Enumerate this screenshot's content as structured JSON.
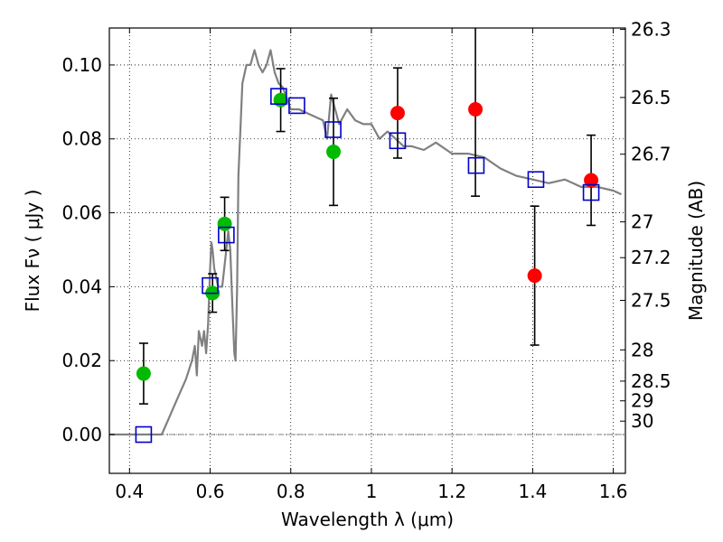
{
  "chart_data": {
    "type": "scatter",
    "xlabel": "Wavelength  λ (μm)",
    "ylabel": "Flux  Fν  ( μJy )",
    "ylabel_right": "Magnitude (AB)",
    "xlim": [
      0.35,
      1.63
    ],
    "ylim": [
      -0.0105,
      0.11
    ],
    "grid": true,
    "colors": {
      "line": "#808080",
      "green": "#00bb00",
      "red": "#ff0000",
      "square": "#0000cc",
      "errbar": "#000000",
      "zero": "#808080"
    },
    "x_ticks": [
      {
        "v": 0.4,
        "label": "0.4"
      },
      {
        "v": 0.6,
        "label": "0.6"
      },
      {
        "v": 0.8,
        "label": "0.8"
      },
      {
        "v": 1.0,
        "label": "1"
      },
      {
        "v": 1.2,
        "label": "1.2"
      },
      {
        "v": 1.4,
        "label": "1.4"
      },
      {
        "v": 1.6,
        "label": "1.6"
      }
    ],
    "y_ticks": [
      {
        "v": 0.0,
        "label": "0.00"
      },
      {
        "v": 0.02,
        "label": "0.02"
      },
      {
        "v": 0.04,
        "label": "0.04"
      },
      {
        "v": 0.06,
        "label": "0.06"
      },
      {
        "v": 0.08,
        "label": "0.08"
      },
      {
        "v": 0.1,
        "label": "0.10"
      }
    ],
    "mag_ticks": [
      {
        "mag": 26.3,
        "label": "26.3"
      },
      {
        "mag": 26.5,
        "label": "26.5"
      },
      {
        "mag": 26.7,
        "label": "26.7"
      },
      {
        "mag": 27.0,
        "label": "27"
      },
      {
        "mag": 27.2,
        "label": "27.2"
      },
      {
        "mag": 27.5,
        "label": "27.5"
      },
      {
        "mag": 28.0,
        "label": "28"
      },
      {
        "mag": 28.5,
        "label": "28.5"
      },
      {
        "mag": 29.0,
        "label": "29"
      },
      {
        "mag": 30.0,
        "label": "30"
      }
    ],
    "model_sed": {
      "name": "",
      "x": [
        0.35,
        0.48,
        0.5,
        0.52,
        0.54,
        0.555,
        0.562,
        0.567,
        0.572,
        0.58,
        0.585,
        0.59,
        0.595,
        0.6,
        0.603,
        0.606,
        0.61,
        0.62,
        0.63,
        0.64,
        0.645,
        0.65,
        0.655,
        0.66,
        0.663,
        0.667,
        0.67,
        0.68,
        0.69,
        0.7,
        0.71,
        0.72,
        0.73,
        0.74,
        0.75,
        0.76,
        0.77,
        0.78,
        0.8,
        0.82,
        0.84,
        0.86,
        0.88,
        0.89,
        0.9,
        0.92,
        0.94,
        0.96,
        0.98,
        1.0,
        1.02,
        1.04,
        1.06,
        1.08,
        1.1,
        1.13,
        1.16,
        1.2,
        1.24,
        1.28,
        1.32,
        1.36,
        1.4,
        1.44,
        1.48,
        1.52,
        1.56,
        1.6,
        1.62
      ],
      "y": [
        0.0,
        0.0,
        0.005,
        0.01,
        0.015,
        0.02,
        0.024,
        0.016,
        0.028,
        0.024,
        0.028,
        0.022,
        0.03,
        0.045,
        0.052,
        0.05,
        0.045,
        0.04,
        0.04,
        0.05,
        0.055,
        0.05,
        0.035,
        0.022,
        0.02,
        0.04,
        0.07,
        0.095,
        0.1,
        0.1,
        0.104,
        0.1,
        0.098,
        0.1,
        0.104,
        0.098,
        0.095,
        0.094,
        0.088,
        0.088,
        0.087,
        0.086,
        0.085,
        0.08,
        0.092,
        0.084,
        0.088,
        0.085,
        0.084,
        0.084,
        0.08,
        0.082,
        0.08,
        0.078,
        0.078,
        0.077,
        0.079,
        0.076,
        0.076,
        0.075,
        0.072,
        0.07,
        0.069,
        0.068,
        0.069,
        0.067,
        0.067,
        0.066,
        0.065
      ]
    },
    "green_points": [
      {
        "x": 0.435,
        "y": 0.0165,
        "err": 0.0082
      },
      {
        "x": 0.606,
        "y": 0.0383,
        "err": 0.0052
      },
      {
        "x": 0.636,
        "y": 0.057,
        "err": 0.0072
      },
      {
        "x": 0.775,
        "y": 0.0905,
        "err": 0.0085
      },
      {
        "x": 0.906,
        "y": 0.0765,
        "err": 0.0145
      }
    ],
    "red_points": [
      {
        "x": 1.065,
        "y": 0.087,
        "err": 0.0122
      },
      {
        "x": 1.258,
        "y": 0.088,
        "err": 0.0235
      },
      {
        "x": 1.405,
        "y": 0.043,
        "err": 0.0188
      },
      {
        "x": 1.545,
        "y": 0.0688,
        "err": 0.0122
      }
    ],
    "model_points": [
      {
        "x": 0.435,
        "y": 0.0
      },
      {
        "x": 0.6,
        "y": 0.0403
      },
      {
        "x": 0.64,
        "y": 0.054
      },
      {
        "x": 0.77,
        "y": 0.0915
      },
      {
        "x": 0.815,
        "y": 0.089
      },
      {
        "x": 0.905,
        "y": 0.0825
      },
      {
        "x": 1.065,
        "y": 0.0795
      },
      {
        "x": 1.26,
        "y": 0.0728
      },
      {
        "x": 1.408,
        "y": 0.069
      },
      {
        "x": 1.545,
        "y": 0.0655
      }
    ]
  }
}
